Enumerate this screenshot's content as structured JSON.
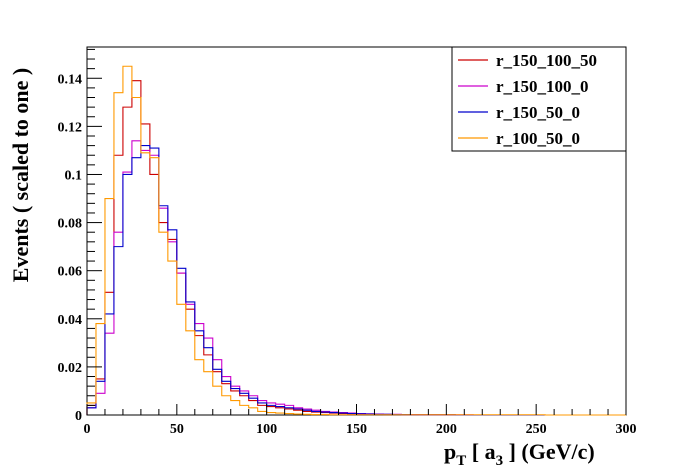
{
  "chart_data": {
    "type": "line",
    "style": "step-histogram",
    "xlabel_main": "p",
    "xlabel_sub": "T",
    "xlabel_mid": " [ a",
    "xlabel_sub2": "3",
    "xlabel_end": " ] (GeV/c)",
    "ylabel": "Events  ( scaled to one )",
    "xlim": [
      0,
      300
    ],
    "ylim": [
      0,
      0.153
    ],
    "bin_width": 5,
    "x_ticks": [
      0,
      50,
      100,
      150,
      200,
      250,
      300
    ],
    "x_tick_labels": [
      "0",
      "50",
      "100",
      "150",
      "200",
      "250",
      "300"
    ],
    "y_ticks": [
      0,
      0.02,
      0.04,
      0.06,
      0.08,
      0.1,
      0.12,
      0.14
    ],
    "y_tick_labels": [
      "0",
      "0.02",
      "0.04",
      "0.06",
      "0.08",
      "0.1",
      "0.12",
      "0.14"
    ],
    "legend_position": "top-right",
    "series": [
      {
        "name": "r_150_100_50",
        "color": "#cc0000",
        "values": [
          0.004,
          0.015,
          0.051,
          0.108,
          0.128,
          0.139,
          0.121,
          0.1,
          0.08,
          0.073,
          0.059,
          0.044,
          0.033,
          0.025,
          0.018,
          0.013,
          0.01,
          0.008,
          0.006,
          0.004,
          0.0035,
          0.003,
          0.0025,
          0.002,
          0.0015,
          0.0012,
          0.001,
          0.0008,
          0.0006,
          0.0005,
          0.0004,
          0.0003,
          0.0003,
          0.0002,
          0.0002,
          0.0001,
          0.0001,
          0.0001,
          0.0001,
          0.0001,
          0.0001,
          0,
          0,
          0,
          0,
          0,
          0,
          0,
          0,
          0,
          0,
          0,
          0,
          0,
          0,
          0,
          0,
          0,
          0,
          0
        ]
      },
      {
        "name": "r_150_100_0",
        "color": "#cc00cc",
        "values": [
          0.003,
          0.009,
          0.034,
          0.076,
          0.101,
          0.114,
          0.11,
          0.108,
          0.086,
          0.072,
          0.059,
          0.046,
          0.038,
          0.032,
          0.023,
          0.016,
          0.012,
          0.01,
          0.008,
          0.006,
          0.005,
          0.0045,
          0.004,
          0.003,
          0.0025,
          0.002,
          0.0015,
          0.0012,
          0.001,
          0.0008,
          0.0006,
          0.0005,
          0.0004,
          0.0003,
          0.0003,
          0.0002,
          0.0002,
          0.0001,
          0.0001,
          0.0001,
          0.0001,
          0.0001,
          0.0001,
          0,
          0,
          0,
          0,
          0,
          0,
          0,
          0,
          0,
          0,
          0,
          0,
          0,
          0,
          0,
          0,
          0
        ]
      },
      {
        "name": "r_150_50_0",
        "color": "#0000cc",
        "values": [
          0.003,
          0.014,
          0.042,
          0.07,
          0.1,
          0.107,
          0.112,
          0.111,
          0.087,
          0.077,
          0.061,
          0.047,
          0.035,
          0.028,
          0.019,
          0.014,
          0.011,
          0.009,
          0.007,
          0.005,
          0.004,
          0.0035,
          0.003,
          0.0025,
          0.002,
          0.0015,
          0.0012,
          0.001,
          0.0008,
          0.0006,
          0.0005,
          0.0004,
          0.0003,
          0.0003,
          0.0002,
          0.0002,
          0.0001,
          0.0001,
          0.0001,
          0.0001,
          0.0001,
          0,
          0,
          0,
          0,
          0,
          0,
          0,
          0,
          0,
          0,
          0,
          0,
          0,
          0,
          0,
          0,
          0,
          0,
          0
        ]
      },
      {
        "name": "r_100_50_0",
        "color": "#ff9900",
        "values": [
          0.005,
          0.038,
          0.09,
          0.134,
          0.145,
          0.132,
          0.109,
          0.107,
          0.076,
          0.064,
          0.046,
          0.035,
          0.023,
          0.018,
          0.012,
          0.008,
          0.006,
          0.004,
          0.003,
          0.0015,
          0.001,
          0.0008,
          0.0006,
          0.0004,
          0.0003,
          0.0002,
          0.0002,
          0.0001,
          0.0001,
          0.0001,
          0.0001,
          0.0001,
          0.0001,
          0.0001,
          0.0001,
          0.0001,
          0.0001,
          0.0001,
          0.0001,
          0.0001,
          0.0001,
          0.0001,
          0.0001,
          0.0001,
          0.0001,
          0.0001,
          0.0001,
          0.0001,
          0.0001,
          0.0001,
          0.0001,
          0,
          0,
          0,
          0,
          0,
          0,
          0,
          0,
          0
        ]
      }
    ]
  }
}
